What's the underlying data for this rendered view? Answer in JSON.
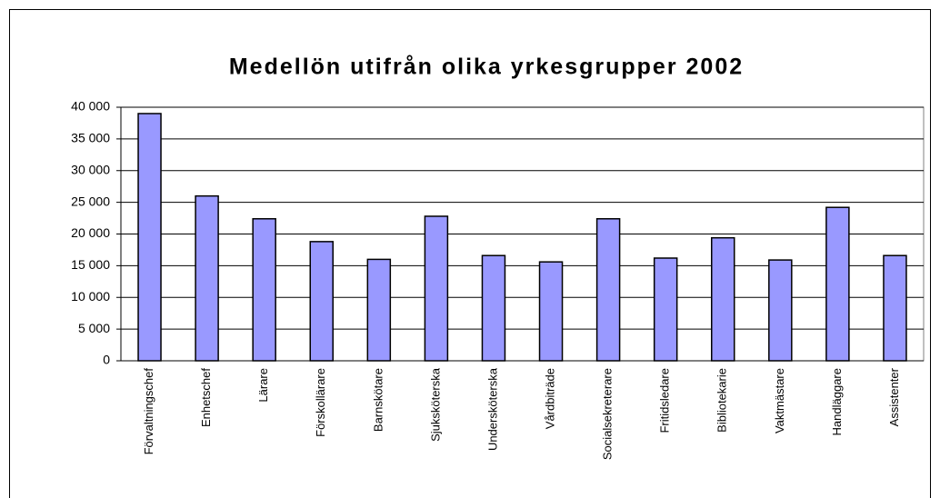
{
  "chart_data": {
    "type": "bar",
    "title": "Medellön utifrån olika yrkesgrupper 2002",
    "categories": [
      "Förvaltningschef",
      "Enhetschef",
      "Lärare",
      "Förskollärare",
      "Barnskötare",
      "Sjuksköterska",
      "Undersköterska",
      "Vårdbiträde",
      "Socialsekreterare",
      "Fritidsledare",
      "Bibliotekarie",
      "Vaktmästare",
      "Handläggare",
      "Assistenter"
    ],
    "values": [
      39000,
      26000,
      22400,
      18800,
      16000,
      22800,
      16600,
      15600,
      22400,
      16200,
      19400,
      15900,
      24200,
      16600
    ],
    "color": "#9999ff",
    "ylim": [
      0,
      40000
    ],
    "yticks": [
      {
        "value": 0,
        "label": "0"
      },
      {
        "value": 5000,
        "label": "5 000"
      },
      {
        "value": 10000,
        "label": "10 000"
      },
      {
        "value": 15000,
        "label": "15 000"
      },
      {
        "value": 20000,
        "label": "20 000"
      },
      {
        "value": 25000,
        "label": "25 000"
      },
      {
        "value": 30000,
        "label": "30 000"
      },
      {
        "value": 35000,
        "label": "35 000"
      },
      {
        "value": 40000,
        "label": "40 000"
      }
    ],
    "grid": true
  }
}
